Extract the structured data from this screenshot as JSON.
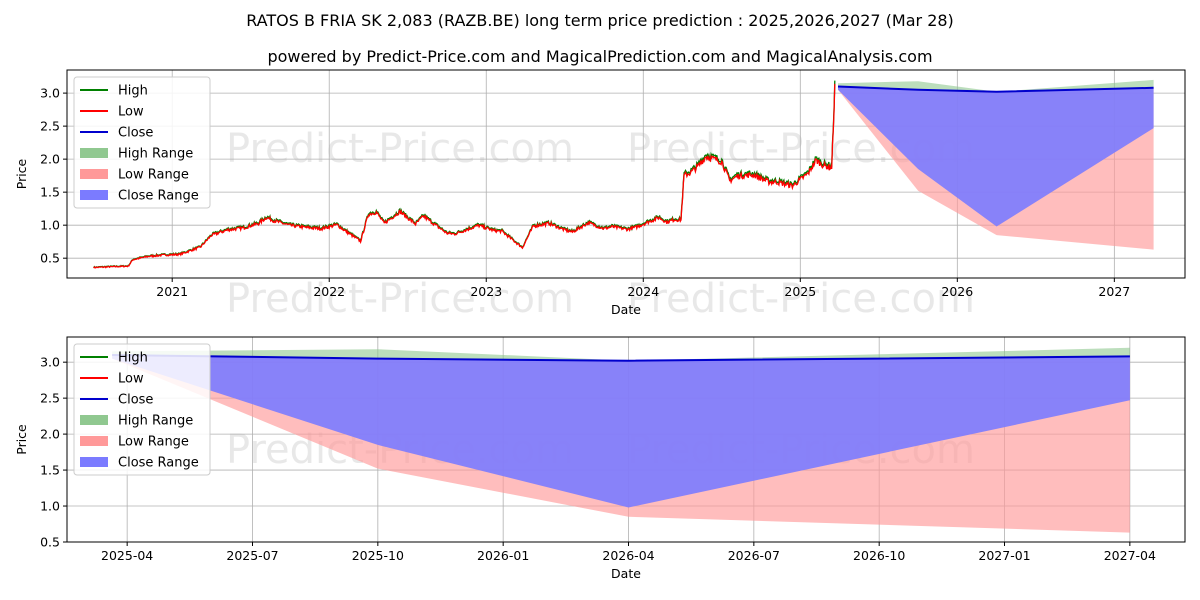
{
  "title": "RATOS B FRIA SK 2,083 (RAZB.BE) long term price prediction : 2025,2026,2027 (Mar 28)",
  "subtitle": "powered by Predict-Price.com and MagicalPrediction.com and MagicalAnalysis.com",
  "watermark": "Predict-Price.com",
  "legend": {
    "high": "High",
    "low": "Low",
    "close": "Close",
    "high_range": "High Range",
    "low_range": "Low Range",
    "close_range": "Close Range"
  },
  "colors": {
    "high": "#008000",
    "low": "#ff0000",
    "close": "#0000cd",
    "high_range": "#90c890",
    "low_range": "#ff9999",
    "close_range": "#7b7bff"
  },
  "chart_data": [
    {
      "type": "line",
      "name": "full history with prediction",
      "xlabel": "Date",
      "ylabel": "Price",
      "xlim": [
        2020.33,
        2027.45
      ],
      "ylim": [
        0.2,
        3.35
      ],
      "x_ticks": [
        2021,
        2022,
        2023,
        2024,
        2025,
        2026,
        2027
      ],
      "x_tick_labels": [
        "2021",
        "2022",
        "2023",
        "2024",
        "2025",
        "2026",
        "2027"
      ],
      "y_ticks": [
        0.5,
        1.0,
        1.5,
        2.0,
        2.5,
        3.0
      ],
      "y_tick_labels": [
        "0.5",
        "1.0",
        "1.5",
        "2.0",
        "2.5",
        "3.0"
      ],
      "grid": true,
      "legend_position": "upper left",
      "history": {
        "t": [
          2020.5,
          2020.6,
          2020.72,
          2020.75,
          2020.85,
          2020.95,
          2021.05,
          2021.12,
          2021.18,
          2021.25,
          2021.35,
          2021.45,
          2021.55,
          2021.6,
          2021.65,
          2021.75,
          2021.85,
          2021.95,
          2022.05,
          2022.1,
          2022.15,
          2022.2,
          2022.25,
          2022.3,
          2022.35,
          2022.45,
          2022.55,
          2022.6,
          2022.75,
          2022.8,
          2022.95,
          2023.05,
          2023.1,
          2023.2,
          2023.23,
          2023.3,
          2023.4,
          2023.5,
          2023.55,
          2023.65,
          2023.75,
          2023.8,
          2023.9,
          2023.95,
          2024.0,
          2024.1,
          2024.15,
          2024.2,
          2024.24,
          2024.26,
          2024.3,
          2024.35,
          2024.4,
          2024.5,
          2024.55,
          2024.6,
          2024.7,
          2024.8,
          2024.85,
          2024.95,
          2025.05,
          2025.1,
          2025.15,
          2025.2,
          2025.22
        ],
        "close": [
          0.36,
          0.37,
          0.38,
          0.48,
          0.53,
          0.55,
          0.56,
          0.62,
          0.67,
          0.85,
          0.93,
          0.96,
          1.03,
          1.12,
          1.07,
          1.0,
          0.97,
          0.95,
          1.01,
          0.92,
          0.84,
          0.76,
          1.17,
          1.2,
          1.03,
          1.21,
          1.02,
          1.14,
          0.88,
          0.87,
          1.0,
          0.92,
          0.91,
          0.72,
          0.66,
          0.99,
          1.03,
          0.93,
          0.9,
          1.04,
          0.95,
          0.98,
          0.94,
          0.97,
          1.02,
          1.12,
          1.05,
          1.09,
          1.08,
          1.76,
          1.8,
          1.9,
          2.05,
          1.97,
          1.68,
          1.75,
          1.77,
          1.66,
          1.66,
          1.6,
          1.79,
          1.99,
          1.91,
          1.88,
          3.1
        ]
      },
      "prediction": {
        "t": [
          2025.24,
          2025.75,
          2026.25,
          2027.25
        ],
        "high": [
          3.15,
          3.18,
          3.02,
          3.2
        ],
        "close": [
          3.1,
          3.05,
          3.02,
          3.08
        ],
        "low": [
          3.05,
          1.52,
          0.85,
          0.63
        ],
        "close_lower": [
          3.05,
          1.85,
          0.98,
          2.47
        ]
      }
    },
    {
      "type": "line",
      "name": "prediction zoom",
      "xlabel": "Date",
      "ylabel": "Price",
      "xlim": [
        2025.13,
        2027.36
      ],
      "ylim": [
        0.5,
        3.35
      ],
      "x_ticks": [
        2025.25,
        2025.5,
        2025.75,
        2026.0,
        2026.25,
        2026.5,
        2026.75,
        2027.0,
        2027.25
      ],
      "x_tick_labels": [
        "2025-04",
        "2025-07",
        "2025-10",
        "2026-01",
        "2026-04",
        "2026-07",
        "2026-10",
        "2027-01",
        "2027-04"
      ],
      "y_ticks": [
        0.5,
        1.0,
        1.5,
        2.0,
        2.5,
        3.0
      ],
      "y_tick_labels": [
        "0.5",
        "1.0",
        "1.5",
        "2.0",
        "2.5",
        "3.0"
      ],
      "grid": true,
      "legend_position": "upper left",
      "prediction": {
        "t": [
          2025.22,
          2025.75,
          2026.25,
          2027.25
        ],
        "high": [
          3.15,
          3.18,
          3.02,
          3.2
        ],
        "close": [
          3.1,
          3.05,
          3.02,
          3.08
        ],
        "low": [
          3.05,
          1.52,
          0.85,
          0.63
        ],
        "close_lower": [
          3.05,
          1.85,
          0.98,
          2.47
        ]
      }
    }
  ]
}
